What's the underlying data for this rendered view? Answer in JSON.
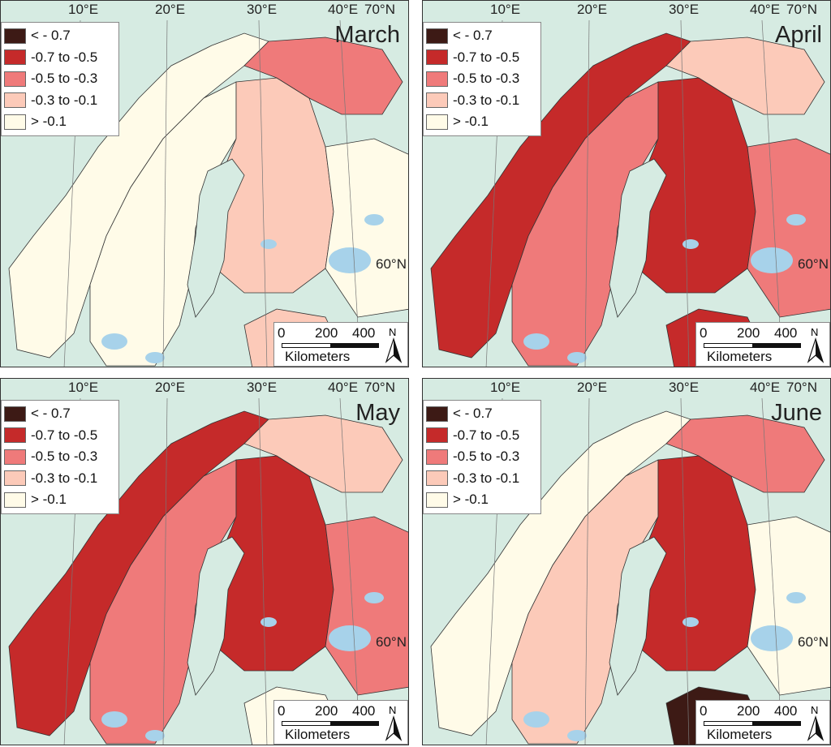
{
  "figure": {
    "lon_labels": [
      "10°E",
      "20°E",
      "30°E",
      "40°E"
    ],
    "lat_top_label": "70°N",
    "lat_mid_label": "60°N",
    "legend": [
      {
        "label": "< - 0.7",
        "color": "#3d1a15"
      },
      {
        "label": "-0.7 to -0.5",
        "color": "#c52a2a"
      },
      {
        "label": "-0.5 to -0.3",
        "color": "#ef7a7a"
      },
      {
        "label": "-0.3 to -0.1",
        "color": "#fccab9"
      },
      {
        "label": "> -0.1",
        "color": "#fffbe8"
      }
    ],
    "scale": {
      "ticks": [
        "0",
        "200",
        "400"
      ],
      "units": "Kilometers",
      "north": "N"
    },
    "colors": {
      "sea": "#d6ebe2",
      "lake": "#a7d2ea",
      "border": "#333333"
    }
  },
  "panels": [
    {
      "month": "March",
      "dominant_class": "> -0.1"
    },
    {
      "month": "April",
      "dominant_class": "-0.7 to -0.5"
    },
    {
      "month": "May",
      "dominant_class": "-0.7 to -0.5"
    },
    {
      "month": "June",
      "dominant_class": "-0.5 to -0.3"
    }
  ]
}
